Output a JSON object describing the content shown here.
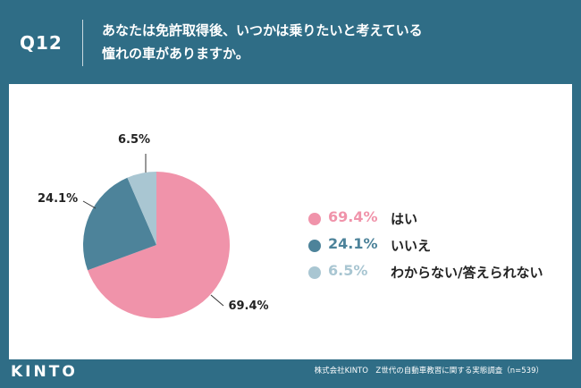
{
  "header": {
    "question_number": "Q12",
    "question_line1": "あなたは免許取得後、いつかは乗りたいと考えている",
    "question_line2": "憧れの車がありますか。"
  },
  "chart_data": {
    "type": "pie",
    "categories": [
      "はい",
      "いいえ",
      "わからない/答えられない"
    ],
    "values": [
      69.4,
      24.1,
      6.5
    ],
    "value_labels": [
      "69.4%",
      "24.1%",
      "6.5%"
    ],
    "colors": [
      "#f093aa",
      "#4d839a",
      "#a9c6d2"
    ],
    "title": "",
    "legend_placement": "right"
  },
  "footer": {
    "logo": "KINTO",
    "source": "株式会社KINTO　Z世代の自動車教習に関する実態調査（n=539）"
  }
}
